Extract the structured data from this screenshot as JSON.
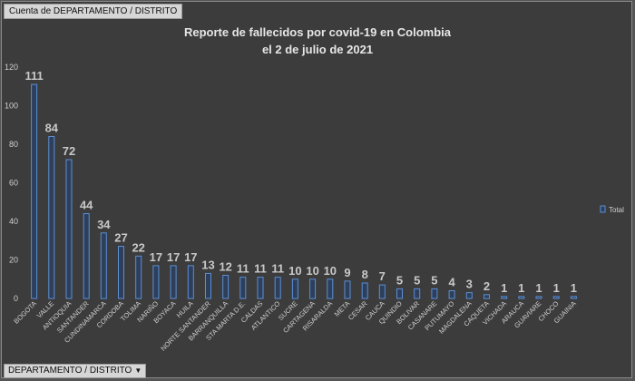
{
  "ui": {
    "field_chip": "Cuenta de DEPARTAMENTO / DISTRITO",
    "axis_field": "DEPARTAMENTO / DISTRITO",
    "dropdown_glyph": "▼"
  },
  "colors": {
    "background": "#3c3c3c",
    "bar_fill": "#2d3f5a",
    "bar_stroke": "#5b8fd6",
    "text": "#cfcfcf"
  },
  "chart_data": {
    "type": "bar",
    "title": "Reporte de fallecidos por covid-19 en Colombia",
    "subtitle": "el 2 de julio de 2021",
    "xlabel": "",
    "ylabel": "",
    "ylim": [
      0,
      120
    ],
    "yticks": [
      0,
      20,
      40,
      60,
      80,
      100,
      120
    ],
    "grid": false,
    "legend_position": "right",
    "series": [
      {
        "name": "Total",
        "values": [
          111,
          84,
          72,
          44,
          34,
          27,
          22,
          17,
          17,
          17,
          13,
          12,
          11,
          11,
          11,
          10,
          10,
          10,
          9,
          8,
          7,
          5,
          5,
          5,
          4,
          3,
          2,
          1,
          1,
          1,
          1,
          1
        ]
      }
    ],
    "categories": [
      "BOGOTA",
      "VALLE",
      "ANTIOQUIA",
      "SANTANDER",
      "CUNDINAMARCA",
      "CORDOBA",
      "TOLIMA",
      "NARIÑO",
      "BOYACA",
      "HUILA",
      "NORTE SANTANDER",
      "BARRANQUILLA",
      "STA MARTA D.E.",
      "CALDAS",
      "ATLANTICO",
      "SUCRE",
      "CARTAGENA",
      "RISARALDA",
      "META",
      "CESAR",
      "CAUCA",
      "QUINDIO",
      "BOLIVAR",
      "CASANARE",
      "PUTUMAYO",
      "MAGDALENA",
      "CAQUETA",
      "VICHADA",
      "ARAUCA",
      "GUAVIARE",
      "CHOCO",
      "GUAINIA"
    ]
  }
}
